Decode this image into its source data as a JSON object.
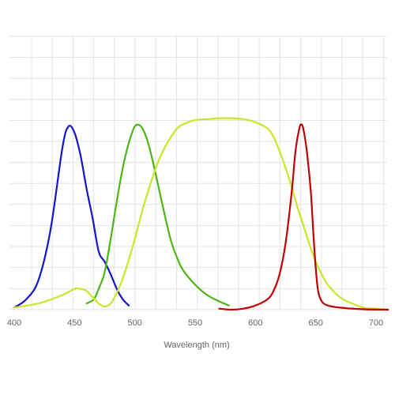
{
  "chart_data": {
    "type": "line",
    "title": "",
    "xlabel": "Wavelength (nm)",
    "ylabel": "",
    "xlim": [
      400,
      710
    ],
    "ylim": [
      0,
      100
    ],
    "x_ticks": [
      400,
      450,
      500,
      550,
      600,
      650,
      700
    ],
    "x_tick_labels": [
      "400",
      "450",
      "500",
      "550",
      "600",
      "650",
      "700"
    ],
    "grid": true,
    "legend": "none",
    "series": [
      {
        "color": "#1414c8",
        "points": [
          [
            400,
            1
          ],
          [
            410,
            5
          ],
          [
            420,
            14
          ],
          [
            430,
            38
          ],
          [
            440,
            78
          ],
          [
            445,
            88
          ],
          [
            450,
            85
          ],
          [
            455,
            74
          ],
          [
            460,
            58
          ],
          [
            465,
            44
          ],
          [
            470,
            28
          ],
          [
            475,
            23
          ],
          [
            480,
            17
          ],
          [
            485,
            10
          ],
          [
            490,
            5
          ],
          [
            495,
            2
          ]
        ]
      },
      {
        "color": "#4cb513",
        "points": [
          [
            460,
            3
          ],
          [
            466,
            5
          ],
          [
            470,
            10
          ],
          [
            475,
            18
          ],
          [
            480,
            34
          ],
          [
            485,
            52
          ],
          [
            490,
            68
          ],
          [
            495,
            80
          ],
          [
            500,
            88
          ],
          [
            505,
            88
          ],
          [
            510,
            82
          ],
          [
            515,
            71
          ],
          [
            520,
            58
          ],
          [
            525,
            45
          ],
          [
            530,
            33
          ],
          [
            535,
            25
          ],
          [
            540,
            19
          ],
          [
            550,
            12
          ],
          [
            560,
            7
          ],
          [
            570,
            4
          ],
          [
            578,
            2
          ]
        ]
      },
      {
        "color": "#cde42a",
        "points": [
          [
            400,
            1
          ],
          [
            420,
            3
          ],
          [
            440,
            7
          ],
          [
            450,
            10
          ],
          [
            455,
            10
          ],
          [
            460,
            9
          ],
          [
            465,
            6
          ],
          [
            470,
            3
          ],
          [
            475,
            1.5
          ],
          [
            480,
            3
          ],
          [
            485,
            8
          ],
          [
            490,
            15
          ],
          [
            495,
            24
          ],
          [
            500,
            34
          ],
          [
            505,
            45
          ],
          [
            510,
            55
          ],
          [
            515,
            64
          ],
          [
            520,
            72
          ],
          [
            525,
            78
          ],
          [
            530,
            83
          ],
          [
            535,
            87
          ],
          [
            540,
            89
          ],
          [
            550,
            91
          ],
          [
            560,
            91.5
          ],
          [
            575,
            92
          ],
          [
            590,
            91.5
          ],
          [
            600,
            90
          ],
          [
            610,
            87
          ],
          [
            615,
            83
          ],
          [
            620,
            76
          ],
          [
            625,
            68
          ],
          [
            630,
            59
          ],
          [
            635,
            49
          ],
          [
            640,
            40
          ],
          [
            645,
            31
          ],
          [
            650,
            23
          ],
          [
            655,
            17
          ],
          [
            660,
            12
          ],
          [
            670,
            6
          ],
          [
            680,
            3
          ],
          [
            690,
            1
          ],
          [
            700,
            0.5
          ],
          [
            710,
            0
          ]
        ]
      },
      {
        "color": "#c00000",
        "points": [
          [
            570,
            0.5
          ],
          [
            580,
            0
          ],
          [
            590,
            0.5
          ],
          [
            600,
            2
          ],
          [
            610,
            5
          ],
          [
            615,
            9
          ],
          [
            620,
            17
          ],
          [
            625,
            32
          ],
          [
            630,
            56
          ],
          [
            633,
            75
          ],
          [
            636,
            86
          ],
          [
            638,
            89
          ],
          [
            640,
            86
          ],
          [
            643,
            74
          ],
          [
            646,
            56
          ],
          [
            648,
            37
          ],
          [
            650,
            20
          ],
          [
            652,
            9
          ],
          [
            655,
            4
          ],
          [
            660,
            2
          ],
          [
            670,
            1
          ],
          [
            690,
            0.2
          ],
          [
            710,
            0
          ]
        ]
      }
    ]
  }
}
